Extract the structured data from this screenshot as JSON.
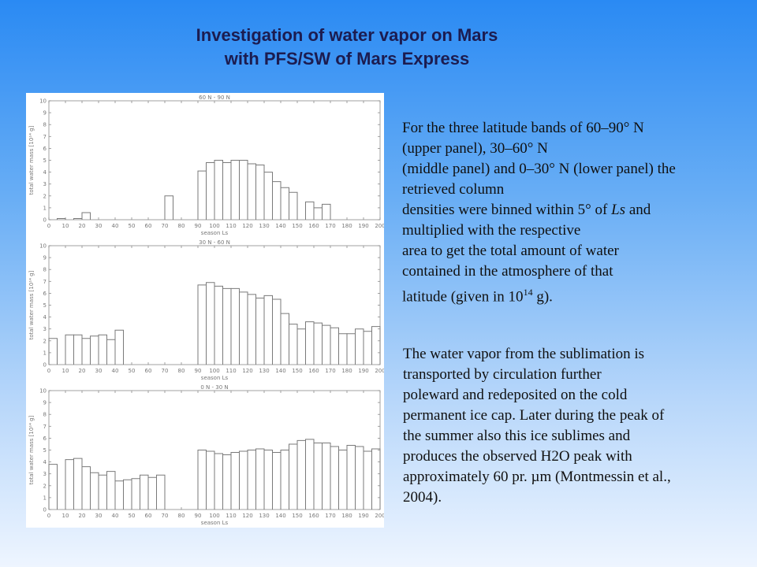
{
  "title": {
    "line1": "Investigation of water vapor on Mars",
    "line2": "with PFS/SW of Mars Express"
  },
  "paragraph1": {
    "lines": [
      "For the three latitude bands of 60–90° N",
      "(upper panel), 30–60° N",
      "(middle panel) and 0–30° N (lower panel) the",
      "retrieved column",
      "densities were binned within 5° of ",
      "multiplied with the respective",
      "area to get the total amount of water",
      "contained in the atmosphere of that",
      "latitude (given in 10"
    ],
    "ls_italic": "Ls",
    "ls_after": " and",
    "sup": "14",
    "end": " g)."
  },
  "paragraph2": {
    "lines": [
      "The water vapor from the sublimation is",
      "transported by circulation further",
      "poleward and redeposited on the cold",
      "permanent ice cap. Later during the peak of",
      "the summer also this ice sublimes and",
      "produces the observed H2O peak with",
      "approximately 60 pr. ",
      "2004)."
    ],
    "mu": "µ",
    "after_mu": "m (Montmessin et al.,"
  },
  "chart_data": [
    {
      "type": "bar",
      "title": "60 N - 90 N",
      "xlabel": "season Ls",
      "ylabel": "total water mass [10¹⁴ g]",
      "xlim": [
        0,
        200
      ],
      "ylim": [
        0,
        10
      ],
      "xticks": [
        0,
        10,
        20,
        30,
        40,
        50,
        60,
        70,
        80,
        90,
        100,
        110,
        120,
        130,
        140,
        150,
        160,
        170,
        180,
        190,
        200
      ],
      "yticks": [
        0,
        1,
        2,
        3,
        4,
        5,
        6,
        7,
        8,
        9,
        10
      ],
      "bins": [
        [
          5,
          10,
          0.1
        ],
        [
          15,
          20,
          0.1
        ],
        [
          20,
          25,
          0.6
        ],
        [
          70,
          75,
          2.0
        ],
        [
          90,
          95,
          4.1
        ],
        [
          95,
          100,
          4.8
        ],
        [
          100,
          105,
          5.0
        ],
        [
          105,
          110,
          4.8
        ],
        [
          110,
          115,
          5.0
        ],
        [
          115,
          120,
          5.0
        ],
        [
          120,
          125,
          4.7
        ],
        [
          125,
          130,
          4.6
        ],
        [
          130,
          135,
          4.0
        ],
        [
          135,
          140,
          3.2
        ],
        [
          140,
          145,
          2.7
        ],
        [
          145,
          150,
          2.3
        ],
        [
          155,
          160,
          1.5
        ],
        [
          160,
          165,
          1.0
        ],
        [
          165,
          170,
          1.3
        ]
      ]
    },
    {
      "type": "bar",
      "title": "30 N - 60 N",
      "xlabel": "season Ls",
      "ylabel": "total water mass [10¹⁴ g]",
      "xlim": [
        0,
        200
      ],
      "ylim": [
        0,
        10
      ],
      "xticks": [
        0,
        10,
        20,
        30,
        40,
        50,
        60,
        70,
        80,
        90,
        100,
        110,
        120,
        130,
        140,
        150,
        160,
        170,
        180,
        190,
        200
      ],
      "yticks": [
        0,
        1,
        2,
        3,
        4,
        5,
        6,
        7,
        8,
        9,
        10
      ],
      "bins": [
        [
          0,
          5,
          2.2
        ],
        [
          10,
          15,
          2.5
        ],
        [
          15,
          20,
          2.5
        ],
        [
          20,
          25,
          2.2
        ],
        [
          25,
          30,
          2.4
        ],
        [
          30,
          35,
          2.5
        ],
        [
          35,
          40,
          2.1
        ],
        [
          40,
          45,
          2.9
        ],
        [
          90,
          95,
          6.7
        ],
        [
          95,
          100,
          6.9
        ],
        [
          100,
          105,
          6.6
        ],
        [
          105,
          110,
          6.4
        ],
        [
          110,
          115,
          6.4
        ],
        [
          115,
          120,
          6.1
        ],
        [
          120,
          125,
          5.9
        ],
        [
          125,
          130,
          5.6
        ],
        [
          130,
          135,
          5.8
        ],
        [
          135,
          140,
          5.5
        ],
        [
          140,
          145,
          4.3
        ],
        [
          145,
          150,
          3.4
        ],
        [
          150,
          155,
          3.0
        ],
        [
          155,
          160,
          3.6
        ],
        [
          160,
          165,
          3.5
        ],
        [
          165,
          170,
          3.3
        ],
        [
          170,
          175,
          3.1
        ],
        [
          175,
          180,
          2.6
        ],
        [
          180,
          185,
          2.6
        ],
        [
          185,
          190,
          3.0
        ],
        [
          190,
          195,
          2.8
        ],
        [
          195,
          200,
          3.2
        ]
      ]
    },
    {
      "type": "bar",
      "title": "0 N - 30 N",
      "xlabel": "season Ls",
      "ylabel": "total water mass [10¹⁴ g]",
      "xlim": [
        0,
        200
      ],
      "ylim": [
        0,
        10
      ],
      "xticks": [
        0,
        10,
        20,
        30,
        40,
        50,
        60,
        70,
        80,
        90,
        100,
        110,
        120,
        130,
        140,
        150,
        160,
        170,
        180,
        190,
        200
      ],
      "yticks": [
        0,
        1,
        2,
        3,
        4,
        5,
        6,
        7,
        8,
        9,
        10
      ],
      "bins": [
        [
          0,
          5,
          3.8
        ],
        [
          10,
          15,
          4.2
        ],
        [
          15,
          20,
          4.3
        ],
        [
          20,
          25,
          3.6
        ],
        [
          25,
          30,
          3.1
        ],
        [
          30,
          35,
          2.9
        ],
        [
          35,
          40,
          3.2
        ],
        [
          40,
          45,
          2.4
        ],
        [
          45,
          50,
          2.5
        ],
        [
          50,
          55,
          2.6
        ],
        [
          55,
          60,
          2.9
        ],
        [
          60,
          65,
          2.7
        ],
        [
          65,
          70,
          2.9
        ],
        [
          90,
          95,
          5.0
        ],
        [
          95,
          100,
          4.9
        ],
        [
          100,
          105,
          4.7
        ],
        [
          105,
          110,
          4.6
        ],
        [
          110,
          115,
          4.8
        ],
        [
          115,
          120,
          4.9
        ],
        [
          120,
          125,
          5.0
        ],
        [
          125,
          130,
          5.1
        ],
        [
          130,
          135,
          5.0
        ],
        [
          135,
          140,
          4.8
        ],
        [
          140,
          145,
          5.0
        ],
        [
          145,
          150,
          5.5
        ],
        [
          150,
          155,
          5.8
        ],
        [
          155,
          160,
          5.9
        ],
        [
          160,
          165,
          5.6
        ],
        [
          165,
          170,
          5.6
        ],
        [
          170,
          175,
          5.3
        ],
        [
          175,
          180,
          5.0
        ],
        [
          180,
          185,
          5.4
        ],
        [
          185,
          190,
          5.3
        ],
        [
          190,
          195,
          4.9
        ],
        [
          195,
          200,
          5.1
        ]
      ]
    }
  ]
}
